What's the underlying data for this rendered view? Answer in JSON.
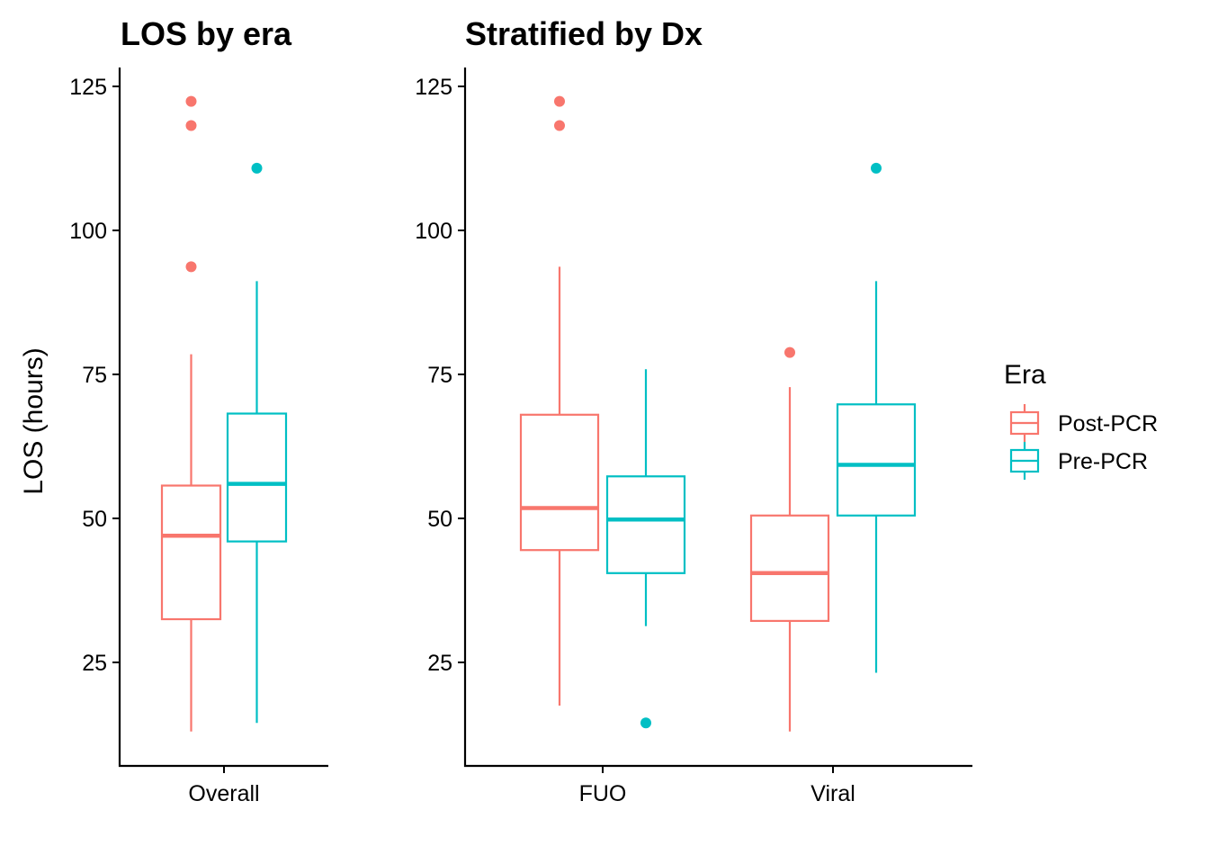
{
  "colors": {
    "post": "#F8766D",
    "pre": "#00BFC4"
  },
  "legend": {
    "title": "Era",
    "items": [
      {
        "key": "post",
        "label": "Post-PCR"
      },
      {
        "key": "pre",
        "label": "Pre-PCR"
      }
    ]
  },
  "chart_data": [
    {
      "type": "boxplot",
      "title": "LOS by era",
      "xlabel": "",
      "ylabel": "LOS (hours)",
      "ylim": [
        8,
        128
      ],
      "yticks": [
        25,
        50,
        75,
        100,
        125
      ],
      "categories": [
        "Overall"
      ],
      "groups": [
        {
          "category": "Overall",
          "era": "post",
          "whisker_low": 13,
          "q1": 32.5,
          "median": 47,
          "q3": 55.7,
          "whisker_high": 78.5,
          "outliers": [
            93.7,
            118.2,
            122.4
          ]
        },
        {
          "category": "Overall",
          "era": "pre",
          "whisker_low": 14.5,
          "q1": 46,
          "median": 56,
          "q3": 68.2,
          "whisker_high": 91.2,
          "outliers": [
            110.8
          ]
        }
      ]
    },
    {
      "type": "boxplot",
      "title": "Stratified by Dx",
      "xlabel": "",
      "ylabel": "",
      "ylim": [
        8,
        128
      ],
      "yticks": [
        25,
        50,
        75,
        100,
        125
      ],
      "categories": [
        "FUO",
        "Viral"
      ],
      "groups": [
        {
          "category": "FUO",
          "era": "post",
          "whisker_low": 17.5,
          "q1": 44.5,
          "median": 51.8,
          "q3": 68,
          "whisker_high": 93.7,
          "outliers": [
            118.2,
            122.4
          ]
        },
        {
          "category": "FUO",
          "era": "pre",
          "whisker_low": 31.3,
          "q1": 40.5,
          "median": 49.8,
          "q3": 57.3,
          "whisker_high": 75.9,
          "outliers": [
            14.5
          ]
        },
        {
          "category": "Viral",
          "era": "post",
          "whisker_low": 13,
          "q1": 32.2,
          "median": 40.5,
          "q3": 50.5,
          "whisker_high": 72.8,
          "outliers": [
            78.8
          ]
        },
        {
          "category": "Viral",
          "era": "pre",
          "whisker_low": 23.2,
          "q1": 50.5,
          "median": 59.3,
          "q3": 69.8,
          "whisker_high": 91.2,
          "outliers": [
            110.8
          ]
        }
      ]
    }
  ]
}
